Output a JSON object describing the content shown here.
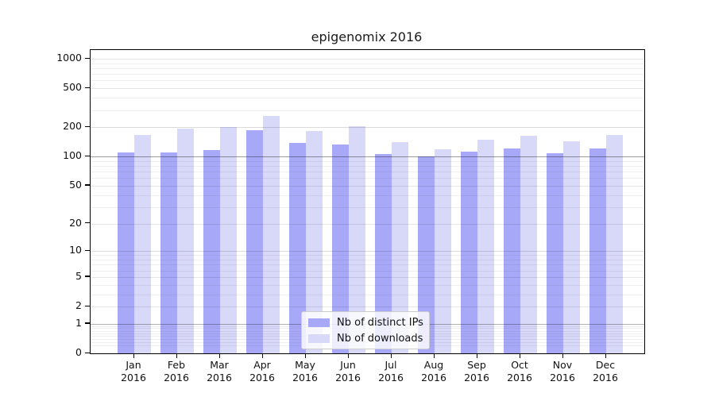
{
  "chart_data": {
    "type": "bar",
    "title": "epigenomix 2016",
    "year": "2016",
    "categories": [
      "Jan",
      "Feb",
      "Mar",
      "Apr",
      "May",
      "Jun",
      "Jul",
      "Aug",
      "Sep",
      "Oct",
      "Nov",
      "Dec"
    ],
    "series": [
      {
        "name": "Nb of distinct IPs",
        "color": "#a8a8f8",
        "values": [
          110,
          110,
          117,
          186,
          139,
          134,
          107,
          101,
          113,
          120,
          108,
          120
        ]
      },
      {
        "name": "Nb of downloads",
        "color": "#d8d8f8",
        "values": [
          168,
          193,
          202,
          260,
          184,
          203,
          140,
          118,
          149,
          162,
          144,
          168
        ]
      }
    ],
    "yscale": "log1p",
    "yticks": [
      0,
      1,
      2,
      5,
      10,
      20,
      50,
      100,
      200,
      500,
      1000
    ],
    "ylim": [
      0,
      1230
    ],
    "grid": true,
    "legend_position": "lower-center-inside"
  }
}
